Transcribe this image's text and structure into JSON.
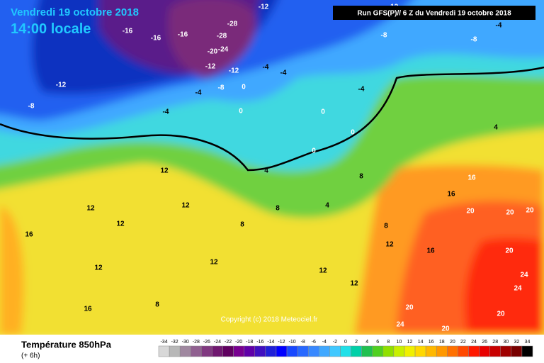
{
  "header": {
    "date": "Vendredi 19 octobre 2018",
    "time": "14:00 locale",
    "run": "Run GFS(P)// 6 Z du Vendredi 19 octobre 2018"
  },
  "copyright": "Copyright (c) 2018 Meteociel.fr",
  "legend": {
    "title": "Température 850hPa",
    "step": "(+ 6h)",
    "values": [
      "-34",
      "-32",
      "-30",
      "-28",
      "-26",
      "-24",
      "-22",
      "-20",
      "-18",
      "-16",
      "-14",
      "-12",
      "-10",
      "-8",
      "-6",
      "-4",
      "-2",
      "0",
      "2",
      "4",
      "6",
      "8",
      "10",
      "12",
      "14",
      "16",
      "18",
      "20",
      "22",
      "24",
      "26",
      "28",
      "30",
      "32",
      "34"
    ],
    "colors": [
      "#d8d8d8",
      "#b8b8b8",
      "#a088a0",
      "#906090",
      "#803880",
      "#701870",
      "#600060",
      "#780090",
      "#6000a8",
      "#4010c0",
      "#2020d8",
      "#0000ff",
      "#1848ff",
      "#2868ff",
      "#3888ff",
      "#40a8ff",
      "#40c8ff",
      "#20e0e8",
      "#00d0a8",
      "#20c050",
      "#50d020",
      "#90e000",
      "#c8f000",
      "#f0f000",
      "#ffd800",
      "#ffb800",
      "#ff9800",
      "#ff7000",
      "#ff4800",
      "#ff1800",
      "#e80000",
      "#c80000",
      "#a00000",
      "#780000",
      "#000000"
    ]
  },
  "contour_labels": [
    "-16",
    "-16",
    "-16",
    "-28",
    "-28",
    "-24",
    "-20",
    "-12",
    "-12",
    "-12",
    "-12",
    "-8",
    "-8",
    "-4",
    "-4",
    "-4",
    "-4",
    "-4",
    "-8",
    "-8",
    "-12",
    "-4",
    "0",
    "0",
    "0",
    "0",
    "0",
    "4",
    "4",
    "8",
    "8",
    "8",
    "12",
    "12",
    "12",
    "12",
    "12",
    "12",
    "12",
    "16",
    "16",
    "16",
    "16",
    "20",
    "20",
    "20",
    "24",
    "24",
    "20",
    "24",
    "20",
    "20",
    "12",
    "8",
    "8",
    "12",
    "16",
    "20",
    "4"
  ]
}
